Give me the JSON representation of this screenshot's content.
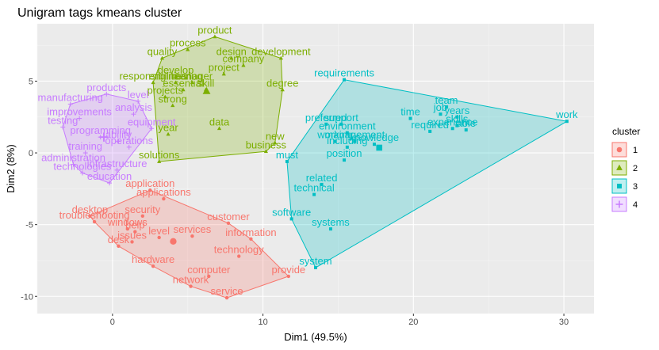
{
  "chart_data": {
    "type": "scatter",
    "title": "Unigram tags kmeans cluster",
    "xlabel": "Dim1 (49.5%)",
    "ylabel": "Dim2 (8%)",
    "xlim": [
      -5,
      32
    ],
    "ylim": [
      -11.2,
      9
    ],
    "xticks": [
      0,
      10,
      20,
      30
    ],
    "yticks": [
      -10,
      -5,
      0,
      5
    ],
    "grid": true,
    "legend": {
      "title": "cluster",
      "position": "right",
      "entries": [
        "1",
        "2",
        "3",
        "4"
      ]
    },
    "colors": {
      "1": "#F8766D",
      "2": "#7CAE00",
      "3": "#00BFC4",
      "4": "#C77CFF"
    },
    "series": [
      {
        "name": "1",
        "points": [
          {
            "label": "applications",
            "x": 3.4,
            "y": -3.2
          },
          {
            "label": "application",
            "x": 2.5,
            "y": -2.6
          },
          {
            "label": "desktop",
            "x": -1.5,
            "y": -4.4
          },
          {
            "label": "troubleshooting",
            "x": -1.2,
            "y": -4.8
          },
          {
            "label": "security",
            "x": 2.0,
            "y": -4.4
          },
          {
            "label": "windows",
            "x": 1.0,
            "y": -5.3
          },
          {
            "label": "help",
            "x": 1.5,
            "y": -5.5
          },
          {
            "label": "issues",
            "x": 1.3,
            "y": -6.2
          },
          {
            "label": "level",
            "x": 3.1,
            "y": -5.9
          },
          {
            "label": "desk",
            "x": 0.4,
            "y": -6.5
          },
          {
            "label": "services",
            "x": 5.3,
            "y": -5.8
          },
          {
            "label": "customer",
            "x": 7.7,
            "y": -4.9
          },
          {
            "label": "information",
            "x": 9.2,
            "y": -6.0
          },
          {
            "label": "technology",
            "x": 8.4,
            "y": -7.2
          },
          {
            "label": "hardware",
            "x": 2.7,
            "y": -7.9
          },
          {
            "label": "computer",
            "x": 6.4,
            "y": -8.6
          },
          {
            "label": "provide",
            "x": 11.7,
            "y": -8.6
          },
          {
            "label": "network",
            "x": 5.2,
            "y": -9.3
          },
          {
            "label": "service",
            "x": 7.6,
            "y": -10.1
          }
        ]
      },
      {
        "name": "2",
        "points": [
          {
            "label": "product",
            "x": 6.8,
            "y": 8.1
          },
          {
            "label": "process",
            "x": 5.0,
            "y": 7.2
          },
          {
            "label": "quality",
            "x": 3.3,
            "y": 6.6
          },
          {
            "label": "development",
            "x": 11.2,
            "y": 6.6
          },
          {
            "label": "design",
            "x": 7.9,
            "y": 6.6
          },
          {
            "label": "company",
            "x": 8.7,
            "y": 6.1
          },
          {
            "label": "project",
            "x": 7.4,
            "y": 5.5
          },
          {
            "label": "develop",
            "x": 4.2,
            "y": 5.3
          },
          {
            "label": "responsibilities",
            "x": 2.7,
            "y": 4.9
          },
          {
            "label": "engineering",
            "x": 4.2,
            "y": 4.9
          },
          {
            "label": "manager",
            "x": 5.3,
            "y": 4.9
          },
          {
            "label": "essential",
            "x": 4.7,
            "y": 4.4
          },
          {
            "label": "skill",
            "x": 6.2,
            "y": 4.4
          },
          {
            "label": "degree",
            "x": 11.3,
            "y": 4.4
          },
          {
            "label": "projects",
            "x": 3.5,
            "y": 3.9
          },
          {
            "label": "strong",
            "x": 4.0,
            "y": 3.3
          },
          {
            "label": "data",
            "x": 7.1,
            "y": 1.7
          },
          {
            "label": "year",
            "x": 3.7,
            "y": 1.3
          },
          {
            "label": "new",
            "x": 10.8,
            "y": 0.7
          },
          {
            "label": "business",
            "x": 10.2,
            "y": 0.1
          },
          {
            "label": "solutions",
            "x": 3.1,
            "y": -0.6
          }
        ]
      },
      {
        "name": "3",
        "points": [
          {
            "label": "requirements",
            "x": 15.4,
            "y": 5.1
          },
          {
            "label": "work",
            "x": 30.2,
            "y": 2.2
          },
          {
            "label": "team",
            "x": 22.2,
            "y": 3.2
          },
          {
            "label": "time",
            "x": 19.8,
            "y": 2.4
          },
          {
            "label": "job",
            "x": 21.8,
            "y": 2.7
          },
          {
            "label": "years",
            "x": 22.9,
            "y": 2.5
          },
          {
            "label": "skills",
            "x": 22.9,
            "y": 1.9
          },
          {
            "label": "experience",
            "x": 22.6,
            "y": 1.7
          },
          {
            "label": "able",
            "x": 23.5,
            "y": 1.6
          },
          {
            "label": "required",
            "x": 21.1,
            "y": 1.5
          },
          {
            "label": "preferred",
            "x": 14.2,
            "y": 2.0
          },
          {
            "label": "support",
            "x": 15.2,
            "y": 2.0
          },
          {
            "label": "environment",
            "x": 15.6,
            "y": 1.4
          },
          {
            "label": "working",
            "x": 14.8,
            "y": 0.8
          },
          {
            "label": "management",
            "x": 16.1,
            "y": 0.8
          },
          {
            "label": "including",
            "x": 15.6,
            "y": 0.4
          },
          {
            "label": "knowledge",
            "x": 17.4,
            "y": 0.6
          },
          {
            "label": "position",
            "x": 15.4,
            "y": -0.5
          },
          {
            "label": "must",
            "x": 11.6,
            "y": -0.6
          },
          {
            "label": "related",
            "x": 13.9,
            "y": -2.2
          },
          {
            "label": "technical",
            "x": 13.4,
            "y": -2.9
          },
          {
            "label": "software",
            "x": 11.9,
            "y": -4.6
          },
          {
            "label": "systems",
            "x": 14.5,
            "y": -5.3
          },
          {
            "label": "system",
            "x": 13.5,
            "y": -8.0
          }
        ]
      },
      {
        "name": "4",
        "points": [
          {
            "label": "products",
            "x": -0.4,
            "y": 4.1
          },
          {
            "label": "manufacturing",
            "x": -2.8,
            "y": 3.4
          },
          {
            "label": "level",
            "x": 1.7,
            "y": 3.6
          },
          {
            "label": "improvements",
            "x": -2.2,
            "y": 2.4
          },
          {
            "label": "equipment",
            "x": 2.6,
            "y": 1.7
          },
          {
            "label": "programming",
            "x": -0.8,
            "y": 1.1
          },
          {
            "label": "operations",
            "x": 1.1,
            "y": 0.4
          },
          {
            "label": "administration",
            "x": -2.6,
            "y": -0.8
          },
          {
            "label": "infrastructure",
            "x": 0.3,
            "y": -1.2
          },
          {
            "label": "technologies",
            "x": -2.0,
            "y": -1.4
          },
          {
            "label": "education",
            "x": -0.2,
            "y": -2.1
          },
          {
            "label": "analysis",
            "x": 1.4,
            "y": 2.7
          },
          {
            "label": "testing",
            "x": -3.3,
            "y": 1.8
          },
          {
            "label": "training",
            "x": -1.8,
            "y": 0.0
          },
          {
            "label": "ability",
            "x": 0.4,
            "y": 0.8
          }
        ]
      }
    ]
  }
}
